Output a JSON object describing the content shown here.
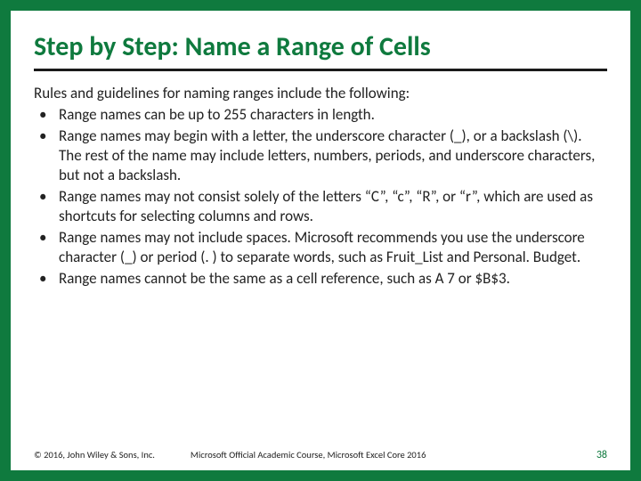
{
  "colors": {
    "border": "#0f7a3e",
    "title": "#0f7a3e",
    "title_rule": "#1a1a1a",
    "body_text": "#222222",
    "background": "#ffffff",
    "page_number": "#0f7a3e"
  },
  "typography": {
    "title_fontsize": 30,
    "title_weight": 700,
    "body_fontsize": 17,
    "footer_fontsize": 10.5,
    "font_family": "Calibri"
  },
  "layout": {
    "slide_width": 720,
    "slide_height": 540,
    "border_width": 12
  },
  "title": "Step by Step: Name a Range of Cells",
  "intro": "Rules and guidelines for naming ranges include the following:",
  "bullets": [
    "Range names can be up to 255 characters in length.",
    "Range names may begin with a letter, the underscore character (_), or a backslash (\\). The rest of the name may include letters, numbers, periods, and underscore characters, but not a backslash.",
    "Range names may not consist solely of the letters “C”, “c”, “R”, or “r”, which are used as shortcuts for selecting columns and rows.",
    "Range names may not include spaces. Microsoft recommends you use the underscore character (_) or period (. ) to separate words, such as Fruit_List and Personal. Budget.",
    "Range names cannot be the same as a cell reference, such as A 7 or $B$3."
  ],
  "footer": {
    "copyright": "© 2016, John Wiley & Sons, Inc.",
    "course": "Microsoft Official Academic Course, Microsoft Excel Core 2016",
    "page": "38"
  }
}
